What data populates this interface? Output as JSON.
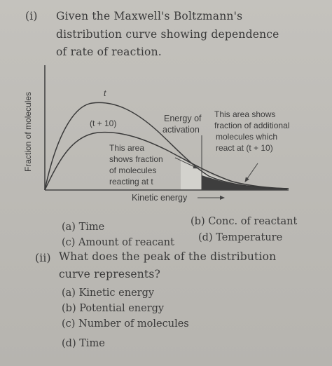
{
  "q1": {
    "number": "(i)",
    "lines": [
      "Given the Maxwell's Boltzmann's",
      "distribution curve showing dependence",
      "of rate of reaction."
    ],
    "figure": {
      "ylabel": "Fraction of molecules",
      "xlabel": "Kinetic energy",
      "curve_t_label": "t",
      "curve_t10_label": "(t + 10)",
      "activation_label_1": "Energy of",
      "activation_label_2": "activation",
      "area1_lines": [
        "This area",
        "shows fraction",
        "of molecules",
        "reacting at t"
      ],
      "area2_lines": [
        "This area shows",
        "fraction of additional",
        "molecules which",
        "react at (t + 10)"
      ]
    },
    "options": {
      "a": "(a) Time",
      "b": "(b) Conc. of reactant",
      "c": "(c) Amount of reacant",
      "d": "(d) Temperature"
    }
  },
  "q2": {
    "number": "(ii)",
    "lines": [
      "What does the peak of the distribution",
      "curve represents?"
    ],
    "options": {
      "a": "(a) Kinetic energy",
      "b": "(b) Potential energy",
      "c": "(c) Number of molecules",
      "d": "(d) Time"
    }
  }
}
